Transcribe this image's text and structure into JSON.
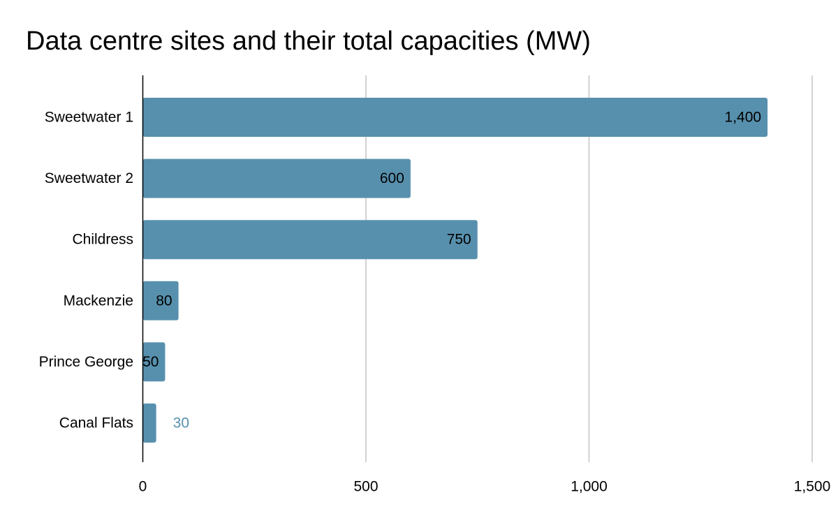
{
  "chart_data": {
    "type": "bar",
    "orientation": "horizontal",
    "title": "Data centre sites and their total capacities (MW)",
    "categories": [
      "Sweetwater 1",
      "Sweetwater 2",
      "Childress",
      "Mackenzie",
      "Prince George",
      "Canal Flats"
    ],
    "values": [
      1400,
      600,
      750,
      80,
      50,
      30
    ],
    "value_labels": [
      "1,400",
      "600",
      "750",
      "80",
      "50",
      "30"
    ],
    "xlim": [
      0,
      1500
    ],
    "xticks": [
      0,
      500,
      1000,
      1500
    ],
    "xtick_labels": [
      "0",
      "500",
      "1,000",
      "1,500"
    ],
    "xlabel": "",
    "ylabel": "",
    "grid": true,
    "legend": "none",
    "bar_color": "#5790ad",
    "inside_label_color": "#000000",
    "outside_label_color": "#5790ad",
    "gridline_color": "#c4c4c4",
    "axis_color": "#000000"
  }
}
